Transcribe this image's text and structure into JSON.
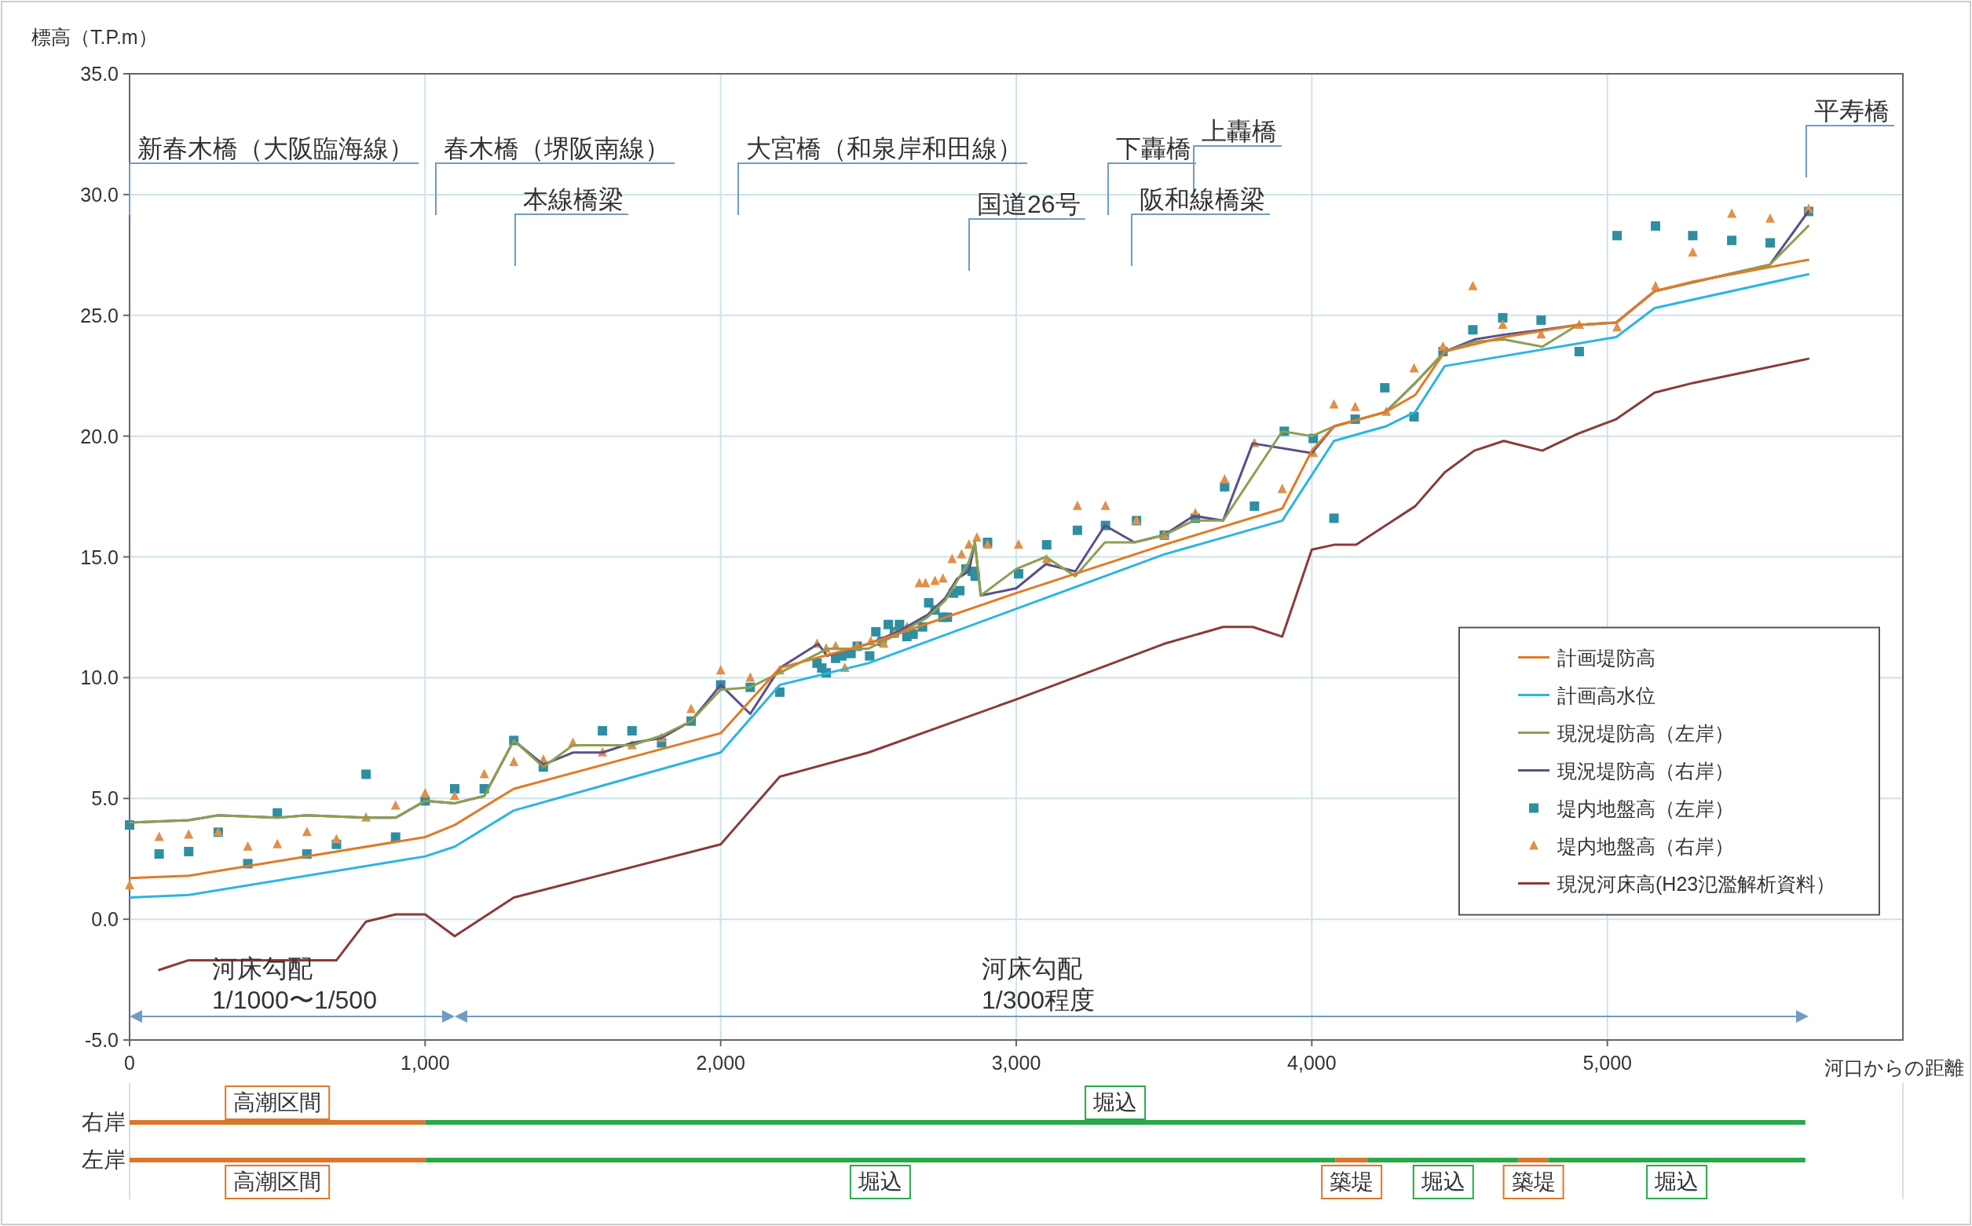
{
  "chart_data": [
    {
      "type": "line",
      "ylabel": "標高（T.P.m）",
      "xlabel": "河口からの距離",
      "xlim": [
        0,
        6000
      ],
      "ylim": [
        -5,
        35
      ],
      "xticks": [
        0,
        {
          "value": 1000,
          "label": "1,000"
        },
        {
          "value": 2000,
          "label": "2,000"
        },
        {
          "value": 3000,
          "label": "3,000"
        },
        {
          "value": 4000,
          "label": "4,000"
        },
        {
          "value": 5000,
          "label": "5,000"
        }
      ],
      "yticks": [
        {
          "value": -5,
          "label": "-5.0"
        },
        {
          "value": 0,
          "label": "0.0"
        },
        {
          "value": 5,
          "label": "5.0"
        },
        {
          "value": 10,
          "label": "10.0"
        },
        {
          "value": 15,
          "label": "15.0"
        },
        {
          "value": 20,
          "label": "20.0"
        },
        {
          "value": 25,
          "label": "25.0"
        },
        {
          "value": 30,
          "label": "30.0"
        },
        {
          "value": 35,
          "label": "35.0"
        }
      ],
      "grid": true,
      "legend": "right",
      "series": [
        {
          "name": "計画堤防高",
          "type": "line",
          "marker": "none",
          "color": "#e07b28",
          "x": [
            0,
            200,
            1000,
            1100,
            1300,
            2000,
            2200,
            2500,
            3000,
            3500,
            3900,
            4000,
            4075,
            4250,
            4350,
            4450,
            4650,
            4800,
            4900,
            5030,
            5160,
            5290,
            5550,
            5680
          ],
          "values": [
            1.7,
            1.8,
            3.4,
            3.9,
            5.4,
            7.7,
            10.4,
            11.4,
            13.5,
            15.5,
            17.0,
            19.4,
            20.4,
            21.0,
            21.7,
            23.5,
            24.1,
            24.4,
            24.6,
            24.7,
            26.0,
            26.4,
            27.0,
            27.3
          ]
        },
        {
          "name": "計画高水位",
          "type": "line",
          "marker": "none",
          "color": "#2bb5e0",
          "x": [
            0,
            200,
            1000,
            1100,
            1300,
            2000,
            2200,
            2500,
            3500,
            3900,
            4075,
            4250,
            4350,
            4450,
            5030,
            5160,
            5680
          ],
          "values": [
            0.9,
            1.0,
            2.6,
            3.0,
            4.5,
            6.9,
            9.7,
            10.6,
            15.1,
            16.5,
            19.8,
            20.4,
            21.0,
            22.9,
            24.1,
            25.3,
            26.7
          ]
        },
        {
          "name": "現況堤防高（左岸）",
          "type": "line",
          "marker": "none",
          "color": "#8ca050",
          "x": [
            0,
            200,
            300,
            500,
            600,
            800,
            900,
            1000,
            1100,
            1200,
            1300,
            1400,
            1500,
            1600,
            1700,
            1800,
            1900,
            2000,
            2100,
            2200,
            2330,
            2360,
            2500,
            2600,
            2700,
            2760,
            2800,
            2840,
            2860,
            2880,
            3000,
            3100,
            3200,
            3300,
            3400,
            3500,
            3600,
            3700,
            3900,
            4000,
            4075,
            4250,
            4350,
            4450,
            4550,
            4650,
            4780,
            4900,
            5030,
            5160,
            5550,
            5680
          ],
          "values": [
            4.0,
            4.1,
            4.3,
            4.2,
            4.3,
            4.2,
            4.2,
            4.9,
            4.8,
            5.1,
            7.4,
            6.3,
            7.2,
            7.2,
            7.2,
            7.6,
            8.2,
            9.5,
            9.6,
            10.2,
            11.0,
            11.2,
            11.2,
            11.8,
            12.5,
            13.2,
            14.0,
            14.8,
            15.6,
            13.4,
            14.5,
            15.0,
            14.2,
            15.6,
            15.6,
            15.9,
            16.5,
            16.5,
            20.2,
            20.0,
            20.4,
            21.0,
            22.2,
            23.5,
            23.9,
            24.0,
            23.7,
            24.6,
            24.7,
            26.0,
            27.1,
            28.7
          ]
        },
        {
          "name": "現況堤防高（右岸）",
          "type": "line",
          "marker": "none",
          "color": "#5a4f8a",
          "x": [
            0,
            200,
            300,
            500,
            600,
            800,
            900,
            1000,
            1100,
            1200,
            1300,
            1400,
            1500,
            1600,
            1700,
            1800,
            1900,
            2000,
            2100,
            2200,
            2330,
            2360,
            2500,
            2600,
            2700,
            2760,
            2800,
            2840,
            2860,
            2880,
            3000,
            3100,
            3200,
            3300,
            3400,
            3500,
            3600,
            3700,
            3800,
            4000,
            4075,
            4250,
            4350,
            4450,
            4550,
            4650,
            4780,
            4900,
            5030,
            5160,
            5550,
            5680
          ],
          "values": [
            4.0,
            4.1,
            4.3,
            4.2,
            4.3,
            4.2,
            4.2,
            4.9,
            4.8,
            5.1,
            7.4,
            6.4,
            6.9,
            6.9,
            7.3,
            7.5,
            8.2,
            9.7,
            8.5,
            10.4,
            11.4,
            10.9,
            11.4,
            11.9,
            12.6,
            13.3,
            14.1,
            14.4,
            15.6,
            13.4,
            13.7,
            14.7,
            14.4,
            16.3,
            15.6,
            15.9,
            16.7,
            16.5,
            19.7,
            19.3,
            20.4,
            21.0,
            22.2,
            23.5,
            24.0,
            24.2,
            24.4,
            24.6,
            24.7,
            26.0,
            27.1,
            29.3
          ]
        },
        {
          "name": "堤内地盤高（左岸）",
          "type": "scatter",
          "marker": "square",
          "color": "#2e8fa0",
          "x": [
            0,
            100,
            200,
            300,
            400,
            500,
            600,
            700,
            800,
            900,
            1000,
            1100,
            1200,
            1300,
            1400,
            1600,
            1700,
            1800,
            1900,
            2000,
            2100,
            2200,
            2326,
            2342,
            2357,
            2389,
            2410,
            2441,
            2462,
            2504,
            2525,
            2546,
            2567,
            2588,
            2605,
            2630,
            2651,
            2683,
            2704,
            2725,
            2752,
            2767,
            2788,
            2809,
            2830,
            2851,
            2861,
            2903,
            3008,
            3103,
            3207,
            3302,
            3407,
            3501,
            3606,
            3705,
            3806,
            3907,
            4005,
            4075,
            4147,
            4247,
            4346,
            4444,
            4545,
            4646,
            4776,
            4905,
            5033,
            5163,
            5289,
            5421,
            5551,
            5681
          ],
          "values": [
            3.9,
            2.7,
            2.8,
            3.6,
            2.3,
            4.4,
            2.7,
            3.1,
            6.0,
            3.4,
            4.9,
            5.4,
            5.4,
            7.4,
            6.3,
            7.8,
            7.8,
            7.3,
            8.2,
            9.7,
            9.6,
            9.4,
            10.6,
            10.4,
            10.2,
            10.8,
            10.9,
            11.0,
            11.3,
            10.9,
            11.9,
            11.5,
            12.2,
            11.9,
            12.2,
            11.7,
            11.8,
            12.1,
            13.1,
            12.8,
            12.5,
            12.5,
            13.5,
            13.6,
            14.5,
            14.4,
            14.2,
            15.6,
            14.3,
            15.5,
            16.1,
            16.3,
            16.5,
            15.9,
            16.6,
            17.9,
            17.1,
            20.2,
            19.9,
            16.6,
            20.7,
            22.0,
            20.8,
            23.5,
            24.4,
            24.9,
            24.8,
            23.5,
            28.3,
            28.7,
            28.3,
            28.1,
            28.0,
            29.3
          ]
        },
        {
          "name": "堤内地盤高（右岸）",
          "type": "scatter",
          "marker": "triangle",
          "color": "#e0904a",
          "x": [
            0,
            100,
            200,
            300,
            400,
            500,
            600,
            700,
            800,
            900,
            1000,
            1100,
            1200,
            1300,
            1400,
            1500,
            1600,
            1700,
            1800,
            1900,
            2000,
            2100,
            2200,
            2326,
            2357,
            2389,
            2420,
            2462,
            2508,
            2552,
            2588,
            2630,
            2672,
            2693,
            2725,
            2752,
            2783,
            2815,
            2840,
            2867,
            2903,
            3008,
            3103,
            3207,
            3302,
            3407,
            3501,
            3606,
            3705,
            3806,
            3900,
            4005,
            4075,
            4147,
            4252,
            4346,
            4444,
            4545,
            4646,
            4776,
            4905,
            5033,
            5163,
            5289,
            5421,
            5551,
            5681
          ],
          "values": [
            1.4,
            3.4,
            3.5,
            3.6,
            3.0,
            3.1,
            3.6,
            3.3,
            4.2,
            4.7,
            5.2,
            5.1,
            6.0,
            6.5,
            6.6,
            7.3,
            6.9,
            7.2,
            7.5,
            8.7,
            10.3,
            10.0,
            10.3,
            11.4,
            11.2,
            11.3,
            10.4,
            11.3,
            11.5,
            11.4,
            11.8,
            12.1,
            13.9,
            13.9,
            14.0,
            14.1,
            14.9,
            15.1,
            15.5,
            15.8,
            15.5,
            15.5,
            14.9,
            17.1,
            17.1,
            16.5,
            15.9,
            16.8,
            18.2,
            19.7,
            17.8,
            19.3,
            21.3,
            21.2,
            21.0,
            22.8,
            23.7,
            26.2,
            24.6,
            24.2,
            24.6,
            24.5,
            26.2,
            27.6,
            29.2,
            29.0,
            29.4
          ]
        },
        {
          "name": "現況河床高(H23氾濫解析資料）",
          "type": "line",
          "marker": "none",
          "color": "#8b3a3a",
          "x": [
            100,
            200,
            700,
            800,
            900,
            1000,
            1100,
            1300,
            2000,
            2100,
            2200,
            2500,
            3000,
            3500,
            3700,
            3800,
            3900,
            4000,
            4075,
            4150,
            4350,
            4450,
            4550,
            4650,
            4780,
            4900,
            5030,
            5160,
            5290,
            5680
          ],
          "values": [
            -2.1,
            -1.7,
            -1.7,
            -0.1,
            0.2,
            0.2,
            -0.7,
            0.9,
            3.1,
            4.5,
            5.9,
            6.9,
            9.1,
            11.4,
            12.1,
            12.1,
            11.7,
            15.3,
            15.5,
            15.5,
            17.1,
            18.5,
            19.4,
            19.8,
            19.4,
            20.1,
            20.7,
            21.8,
            22.2,
            23.2
          ]
        }
      ],
      "annotations": [
        "新春木橋（大阪臨海線）",
        "春木橋（堺阪南線）",
        "本線橋梁",
        "大宮橋（和泉岸和田線）",
        "国道26号",
        "下轟橋",
        "上轟橋",
        "阪和線橋梁",
        "平寿橋",
        "河床勾配\n1/1000〜1/500",
        "河床勾配\n1/300程度"
      ]
    },
    {
      "type": "bar",
      "orientation": "horizontal",
      "stacked": true,
      "categories": [
        "右岸",
        "左岸"
      ],
      "xlim": [
        0,
        6000
      ],
      "tick_labels": "y",
      "series": [
        {
          "color": "#d9782d",
          "values": [
            1000,
            1000
          ],
          "value_labels": [
            "高潮区間",
            "高潮区間"
          ]
        },
        {
          "color": "#2aa84a",
          "values": [
            4670,
            3080
          ],
          "value_labels": [
            "堀込",
            "堀込"
          ]
        },
        {
          "color": "#d9782d",
          "values": [
            null,
            110
          ],
          "value_labels": [
            null,
            "築堤"
          ]
        },
        {
          "color": "#2aa84a",
          "values": [
            null,
            510
          ],
          "value_labels": [
            null,
            "堀込"
          ]
        },
        {
          "color": "#d9782d",
          "values": [
            null,
            100
          ],
          "value_labels": [
            null,
            "築堤"
          ]
        },
        {
          "color": "#2aa84a",
          "values": [
            null,
            870
          ],
          "value_labels": [
            null,
            "堀込"
          ]
        }
      ]
    }
  ]
}
